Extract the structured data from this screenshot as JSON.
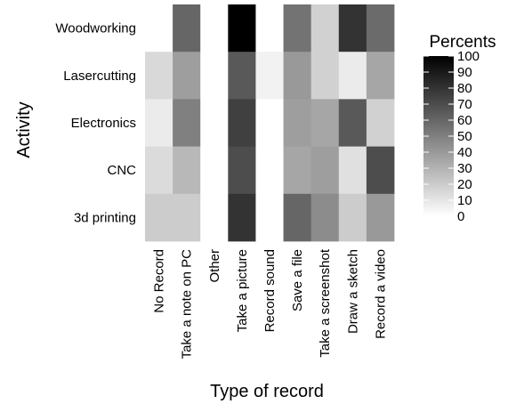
{
  "chart_data": {
    "type": "heatmap",
    "title": "",
    "xlabel": "Type of record",
    "ylabel": "Activity",
    "x_categories": [
      "No Record",
      "Take a note on PC",
      "Other",
      "Take a picture",
      "Record sound",
      "Save a file",
      "Take a screenshot",
      "Draw a sketch",
      "Record a video"
    ],
    "y_categories": [
      "Woodworking",
      "Lasercutting",
      "Electronics",
      "CNC",
      "3d printing"
    ],
    "values": [
      [
        0,
        60,
        0,
        100,
        0,
        55,
        18,
        80,
        58
      ],
      [
        15,
        38,
        0,
        65,
        5,
        40,
        18,
        8,
        35
      ],
      [
        8,
        50,
        0,
        75,
        0,
        38,
        35,
        65,
        18
      ],
      [
        14,
        28,
        0,
        70,
        0,
        35,
        38,
        12,
        70
      ],
      [
        20,
        20,
        0,
        80,
        0,
        60,
        45,
        20,
        40
      ]
    ],
    "legend": {
      "title": "Percents",
      "range": [
        0,
        100
      ],
      "ticks": [
        0,
        10,
        20,
        30,
        40,
        50,
        60,
        70,
        80,
        90,
        100
      ],
      "low_color": "#ffffff",
      "high_color": "#000000"
    },
    "grid": false
  }
}
